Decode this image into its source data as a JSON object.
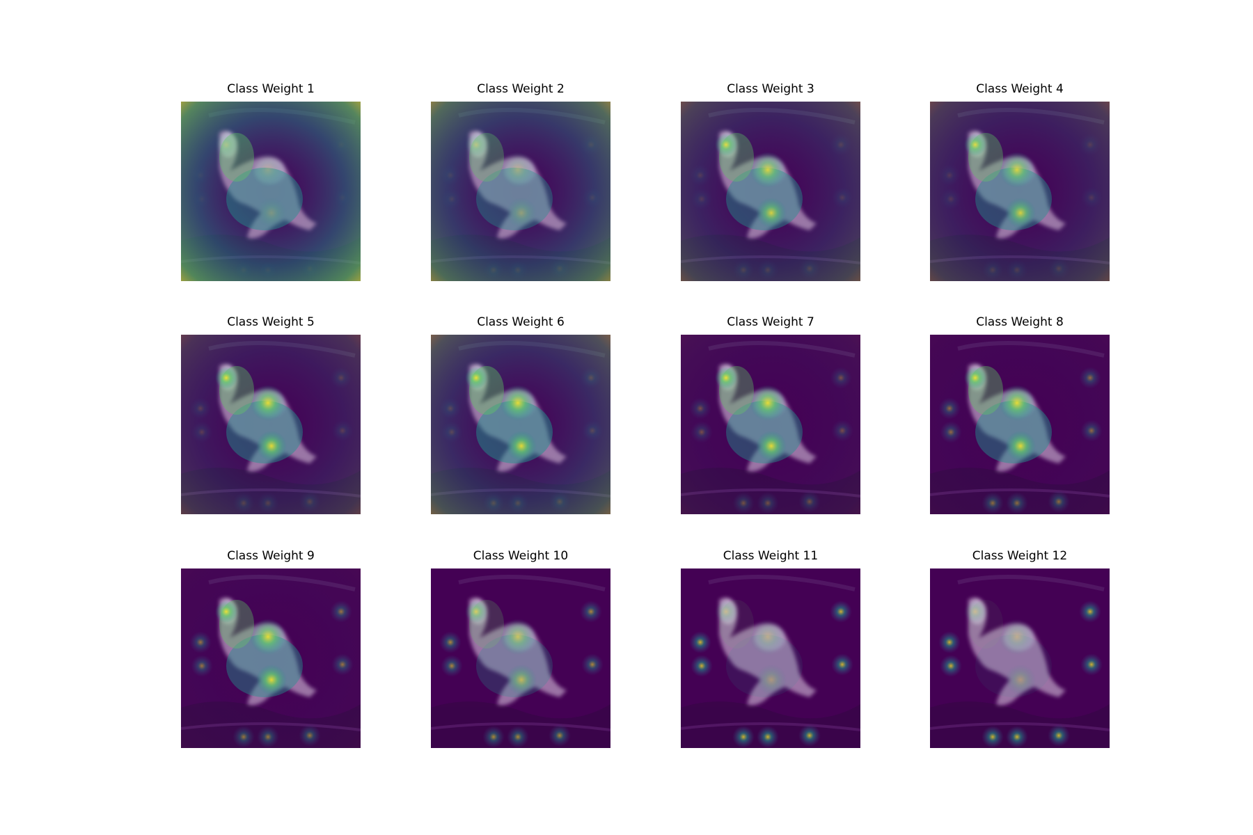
{
  "figure": {
    "layout": {
      "rows": 3,
      "cols": 4
    },
    "colormap": "viridis",
    "colors": {
      "low": "#440154",
      "mid_low": "#3b528b",
      "mid": "#21918c",
      "mid_high": "#5ec962",
      "high": "#fde725",
      "dog_fur": "#b89ac0",
      "background": "#ffffff"
    },
    "panels": [
      {
        "title": "Class Weight 1",
        "intensity": 0.85,
        "edge_glow": 0.95,
        "spot_glow": 0.05,
        "hotspot_focus": 0.2
      },
      {
        "title": "Class Weight 2",
        "intensity": 0.7,
        "edge_glow": 0.75,
        "spot_glow": 0.1,
        "hotspot_focus": 0.3
      },
      {
        "title": "Class Weight 3",
        "intensity": 0.8,
        "edge_glow": 0.45,
        "spot_glow": 0.15,
        "hotspot_focus": 0.8
      },
      {
        "title": "Class Weight 4",
        "intensity": 0.8,
        "edge_glow": 0.4,
        "spot_glow": 0.15,
        "hotspot_focus": 0.8
      },
      {
        "title": "Class Weight 5",
        "intensity": 0.85,
        "edge_glow": 0.35,
        "spot_glow": 0.2,
        "hotspot_focus": 0.9
      },
      {
        "title": "Class Weight 6",
        "intensity": 0.9,
        "edge_glow": 0.55,
        "spot_glow": 0.2,
        "hotspot_focus": 0.9
      },
      {
        "title": "Class Weight 7",
        "intensity": 0.8,
        "edge_glow": 0.1,
        "spot_glow": 0.35,
        "hotspot_focus": 0.9
      },
      {
        "title": "Class Weight 8",
        "intensity": 0.85,
        "edge_glow": 0.05,
        "spot_glow": 0.5,
        "hotspot_focus": 0.9
      },
      {
        "title": "Class Weight 9",
        "intensity": 0.8,
        "edge_glow": 0.05,
        "spot_glow": 0.55,
        "hotspot_focus": 0.9
      },
      {
        "title": "Class Weight 10",
        "intensity": 0.45,
        "edge_glow": 0.0,
        "spot_glow": 0.65,
        "hotspot_focus": 0.6
      },
      {
        "title": "Class Weight 11",
        "intensity": 0.2,
        "edge_glow": 0.0,
        "spot_glow": 0.85,
        "hotspot_focus": 0.3
      },
      {
        "title": "Class Weight 12",
        "intensity": 0.15,
        "edge_glow": 0.0,
        "spot_glow": 0.85,
        "hotspot_focus": 0.3
      }
    ]
  }
}
